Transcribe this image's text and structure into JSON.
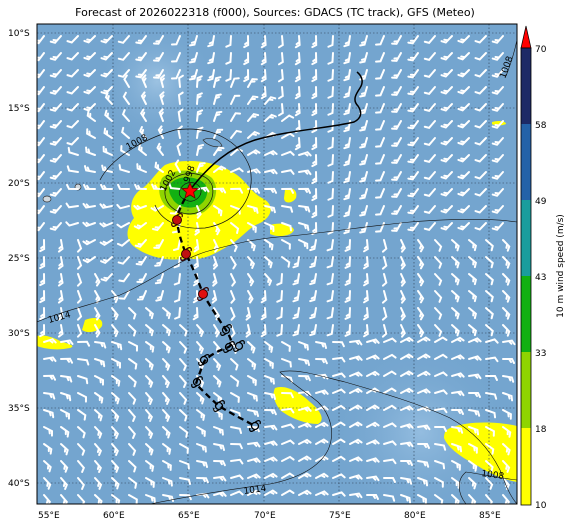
{
  "title": "Forecast of 2026022318 (f000), Sources: GDACS (TC track), GFS (Meteo)",
  "lon_labels": [
    "55°E",
    "60°E",
    "65°E",
    "70°E",
    "75°E",
    "80°E",
    "85°E"
  ],
  "lat_labels": [
    "10°S",
    "15°S",
    "20°S",
    "25°S",
    "30°S",
    "35°S",
    "40°S"
  ],
  "colorbar": {
    "label": "10 m wind speed (m/s)",
    "ticks": [
      "10",
      "18",
      "33",
      "43",
      "49",
      "58",
      "70"
    ],
    "colors": [
      "#ffff00",
      "#8fd400",
      "#12b012",
      "#1a9d9d",
      "#2462a8",
      "#1d2a66"
    ],
    "extend_color": "#ff0000"
  },
  "isobars": {
    "labels": [
      "1008",
      "1002",
      "998",
      "1014",
      "1014",
      "1008",
      "1008"
    ]
  },
  "storm": {
    "current_marker": "red-star",
    "forecast_symbol": "tropical-cyclone-symbol"
  }
}
